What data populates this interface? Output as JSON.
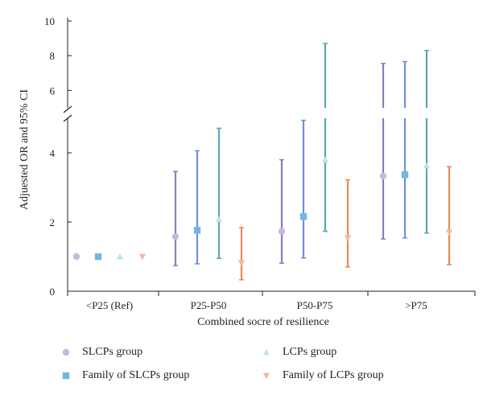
{
  "chart_data": {
    "type": "scatter",
    "xlabel": "Combined socre of resilience",
    "ylabel": "Adjuested OR and 95% CI",
    "categories": [
      "<P25 (Ref)",
      "P25-P50",
      "P50-P75",
      ">P75"
    ],
    "y_lower_ticks": [
      "0",
      "2",
      "4"
    ],
    "y_upper_ticks": [
      "6",
      "8",
      "10"
    ],
    "y_lower_range": [
      0,
      5
    ],
    "y_upper_range": [
      5,
      10
    ],
    "axis_break": true,
    "legend_placement": "bottom",
    "series": [
      {
        "name": "SLCPs group",
        "marker": "circle",
        "color": "#c9b6df",
        "bar_color": "#8f7bb8",
        "points": [
          {
            "est": 1.0
          },
          {
            "est": 1.58,
            "lo": 0.74,
            "hi": 3.46
          },
          {
            "est": 1.73,
            "lo": 0.81,
            "hi": 3.8
          },
          {
            "est": 3.33,
            "lo": 1.51,
            "hi": 7.55
          }
        ]
      },
      {
        "name": "Family of SLCPs group",
        "marker": "square",
        "color": "#74b6e1",
        "bar_color": "#6e8fd8",
        "points": [
          {
            "est": 1.0
          },
          {
            "est": 1.76,
            "lo": 0.79,
            "hi": 4.06
          },
          {
            "est": 2.16,
            "lo": 0.96,
            "hi": 4.94
          },
          {
            "est": 3.37,
            "lo": 1.54,
            "hi": 7.66
          }
        ]
      },
      {
        "name": "LCPs group",
        "marker": "triangle",
        "color": "#bfe3ea",
        "bar_color": "#5aa5b3",
        "points": [
          {
            "est": 1.0
          },
          {
            "est": 2.08,
            "lo": 0.95,
            "hi": 4.71
          },
          {
            "est": 3.8,
            "lo": 1.73,
            "hi": 8.7
          },
          {
            "est": 3.63,
            "lo": 1.68,
            "hi": 8.3
          }
        ]
      },
      {
        "name": "Family of LCPs group",
        "marker": "triangle-down",
        "color": "#f5b89a",
        "bar_color": "#e8875a",
        "points": [
          {
            "est": 1.0
          },
          {
            "est": 0.82,
            "lo": 0.33,
            "hi": 1.84
          },
          {
            "est": 1.54,
            "lo": 0.7,
            "hi": 3.22
          },
          {
            "est": 1.7,
            "lo": 0.77,
            "hi": 3.6
          }
        ]
      }
    ]
  }
}
